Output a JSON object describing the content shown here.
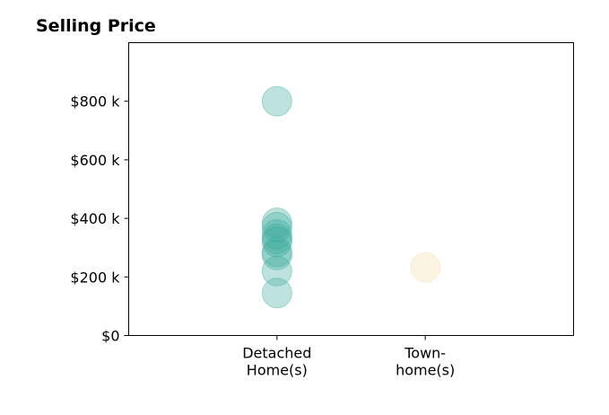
{
  "chart_data": {
    "type": "scatter",
    "title": "Selling Price",
    "xlabel": "",
    "ylabel": "",
    "categories": [
      [
        "Detached",
        "Home(s)"
      ],
      [
        "Town-",
        "home(s)"
      ]
    ],
    "y_ticks": [
      {
        "value": 0,
        "label": "$0"
      },
      {
        "value": 200,
        "label": "$200 k"
      },
      {
        "value": 400,
        "label": "$400 k"
      },
      {
        "value": 600,
        "label": "$600 k"
      },
      {
        "value": 800,
        "label": "$800 k"
      }
    ],
    "ylim": [
      0,
      1000
    ],
    "grid": false,
    "series": [
      {
        "category_index": 0,
        "color": "#3aa99b",
        "values": [
          800,
          385,
          370,
          345,
          330,
          320,
          285,
          275,
          220,
          145
        ]
      },
      {
        "category_index": 1,
        "color": "#f5deaa",
        "values": [
          233
        ]
      }
    ]
  }
}
